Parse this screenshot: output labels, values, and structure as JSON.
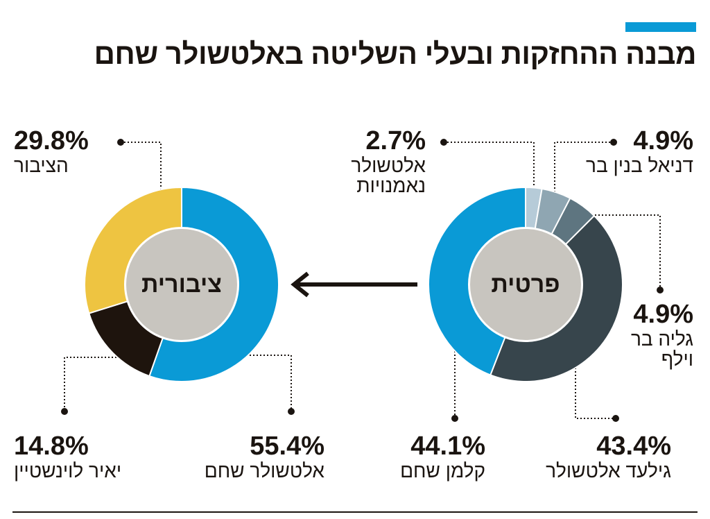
{
  "title": "מבנה ההחזקות ובעלי השליטה באלטשולר שחם",
  "colors": {
    "accent": "#0a9ad6",
    "inner_circle": "#c8c5bf",
    "text": "#1a1410"
  },
  "chart_data": [
    {
      "type": "donut",
      "center_label": "פרטית",
      "slices": [
        {
          "label": "אלטשולר נאמנויות",
          "value": 2.7,
          "display": "2.7%",
          "color": "#b6cbd8"
        },
        {
          "label": "דניאל בנין בר",
          "value": 4.9,
          "display": "4.9%",
          "color": "#8fa6b2"
        },
        {
          "label": "גליה בר וילף",
          "value": 4.9,
          "display": "4.9%",
          "color": "#5e7580"
        },
        {
          "label": "גילעד אלטשולר",
          "value": 43.4,
          "display": "43.4%",
          "color": "#37454c"
        },
        {
          "label": "קלמן שחם",
          "value": 44.1,
          "display": "44.1%",
          "color": "#0a9ad6"
        }
      ]
    },
    {
      "type": "donut",
      "center_label": "ציבורית",
      "slices": [
        {
          "label": "אלטשולר שחם",
          "value": 55.4,
          "display": "55.4%",
          "color": "#0a9ad6"
        },
        {
          "label": "יאיר לוינשטיין",
          "value": 14.8,
          "display": "14.8%",
          "color": "#1e140d"
        },
        {
          "label": "הציבור",
          "value": 29.8,
          "display": "29.8%",
          "color": "#eec441"
        }
      ]
    }
  ]
}
